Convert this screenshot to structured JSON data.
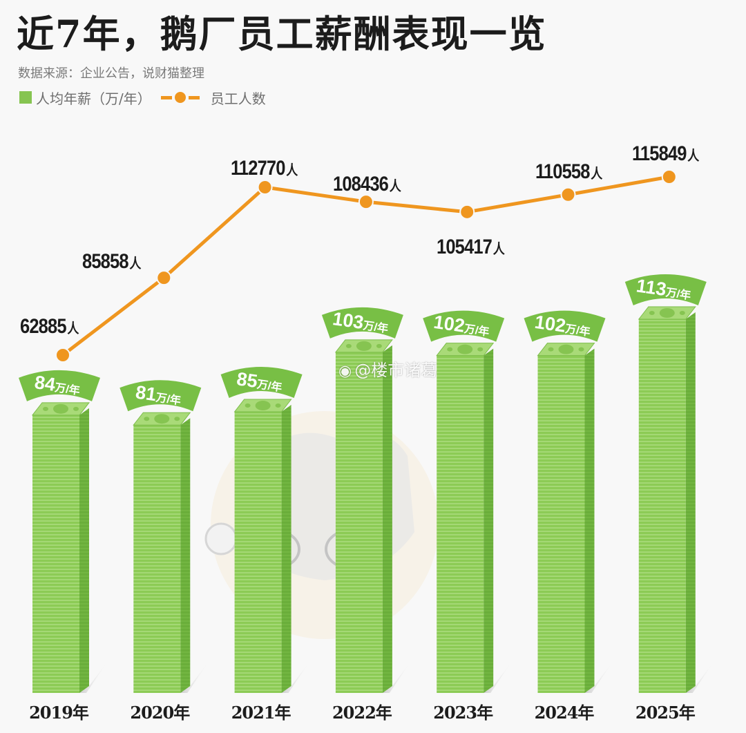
{
  "header": {
    "title": "近7年，鹅厂员工薪酬表现一览",
    "source": "数据来源：企业公告，说财猫整理"
  },
  "legend": {
    "bar_label": "人均年薪（万/年）",
    "line_label": "员工人数",
    "bar_icon": "green-square-icon",
    "line_icon": "orange-line-dot-icon"
  },
  "colors": {
    "bar_front": "#8ccb55",
    "bar_side": "#6aae3a",
    "bar_top": "#a9da78",
    "ribbon": "#78bf45",
    "line": "#ef961f",
    "text_dark": "#1c1c1c",
    "background": "#f8f8f8"
  },
  "watermark": {
    "icon": "weibo-icon",
    "text": "@楼市诸葛"
  },
  "units": {
    "salary_suffix": "万/年",
    "employee_suffix": "人",
    "year_suffix": "年"
  },
  "years": [
    {
      "label": "2019年",
      "salary": "84",
      "employees": "62885"
    },
    {
      "label": "2020年",
      "salary": "81",
      "employees": "85858"
    },
    {
      "label": "2021年",
      "salary": "85",
      "employees": "112770"
    },
    {
      "label": "2022年",
      "salary": "103",
      "employees": "108436"
    },
    {
      "label": "2023年",
      "salary": "102",
      "employees": "105417"
    },
    {
      "label": "2024年",
      "salary": "102",
      "employees": "110558"
    },
    {
      "label": "2025年",
      "salary": "113",
      "employees": "115849"
    }
  ],
  "chart_data": {
    "type": "bar",
    "title": "近7年，鹅厂员工薪酬表现一览",
    "subtitle": "数据来源：企业公告，说财猫整理",
    "categories": [
      "2019年",
      "2020年",
      "2021年",
      "2022年",
      "2023年",
      "2024年",
      "2025年"
    ],
    "series": [
      {
        "name": "人均年薪（万/年）",
        "type": "bar",
        "values": [
          84,
          81,
          85,
          103,
          102,
          102,
          113
        ],
        "color": "#8ccb55"
      },
      {
        "name": "员工人数",
        "type": "line",
        "values": [
          62885,
          85858,
          112770,
          108436,
          105417,
          110558,
          115849
        ],
        "color": "#ef961f"
      }
    ],
    "xlabel": "",
    "ylabel": "",
    "grid": false,
    "legend_position": "top-left",
    "data_labels": true
  }
}
